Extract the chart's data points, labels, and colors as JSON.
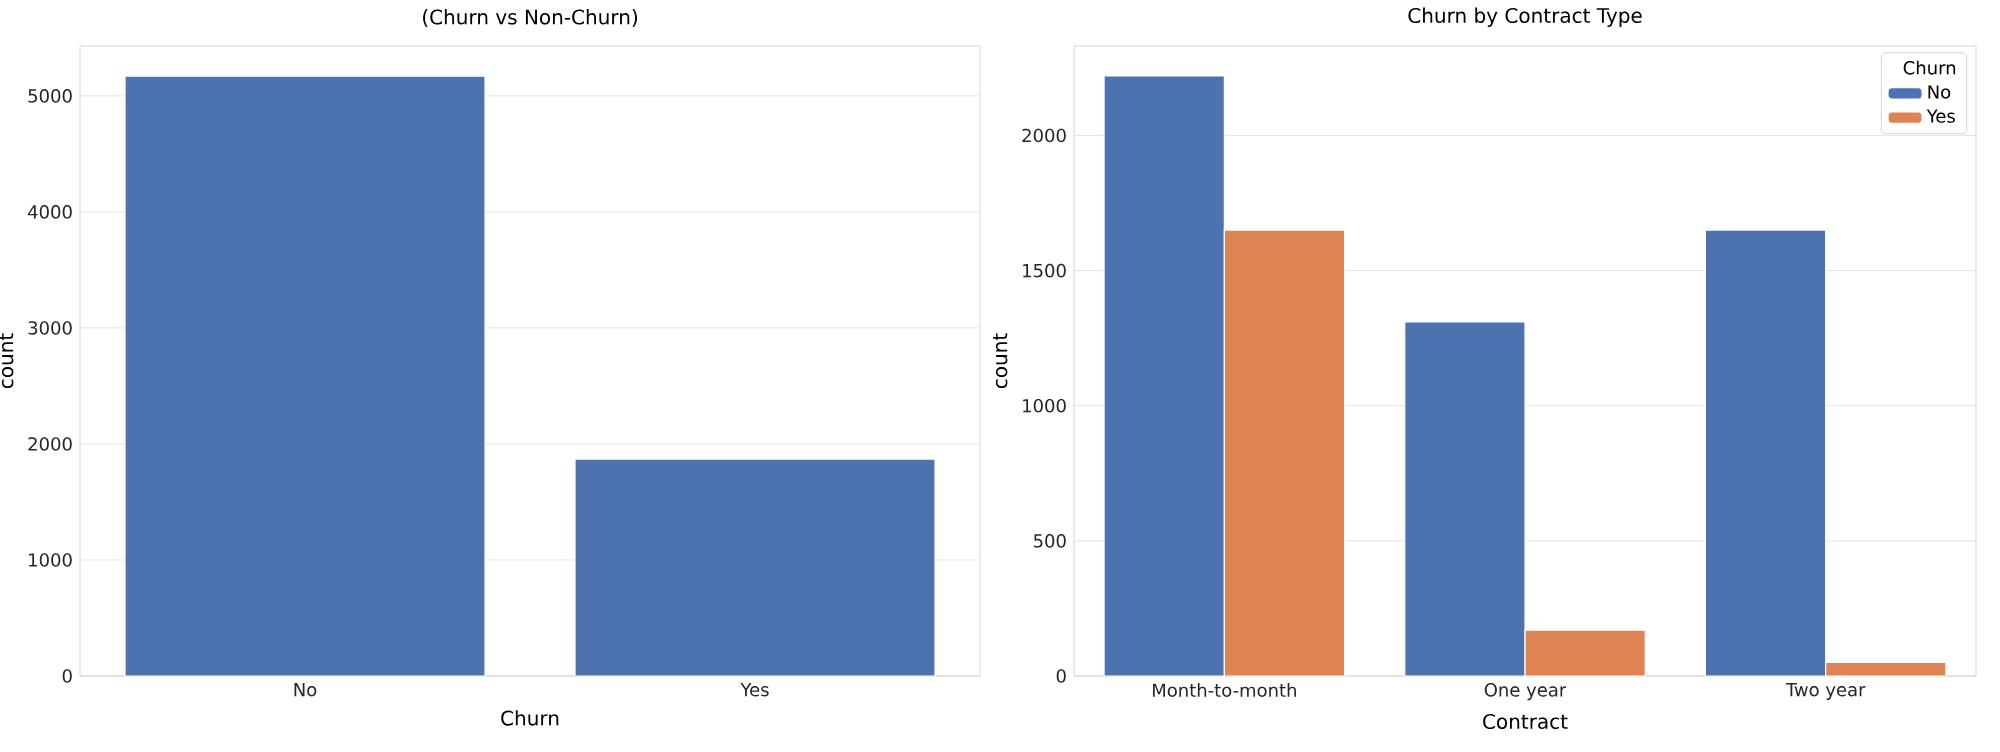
{
  "chart_data": [
    {
      "type": "bar",
      "title": "(Churn vs Non-Churn)",
      "xlabel": "Churn",
      "ylabel": "count",
      "categories": [
        "No",
        "Yes"
      ],
      "values": [
        5170,
        1870
      ],
      "color": "#4c72b0",
      "ylim": [
        0,
        5430
      ],
      "yticks": [
        0,
        1000,
        2000,
        3000,
        4000,
        5000
      ],
      "grid": "y"
    },
    {
      "type": "bar",
      "title": "Churn by Contract Type",
      "xlabel": "Contract",
      "ylabel": "count",
      "legend_title": "Churn",
      "categories": [
        "Month-to-month",
        "One year",
        "Two year"
      ],
      "series": [
        {
          "name": "No",
          "color": "#4c72b0",
          "values": [
            2220,
            1310,
            1650
          ]
        },
        {
          "name": "Yes",
          "color": "#dd8452",
          "values": [
            1650,
            170,
            50
          ]
        }
      ],
      "ylim": [
        0,
        2331
      ],
      "yticks": [
        0,
        500,
        1000,
        1500,
        2000
      ],
      "grid": "y",
      "legend": "top right"
    }
  ]
}
